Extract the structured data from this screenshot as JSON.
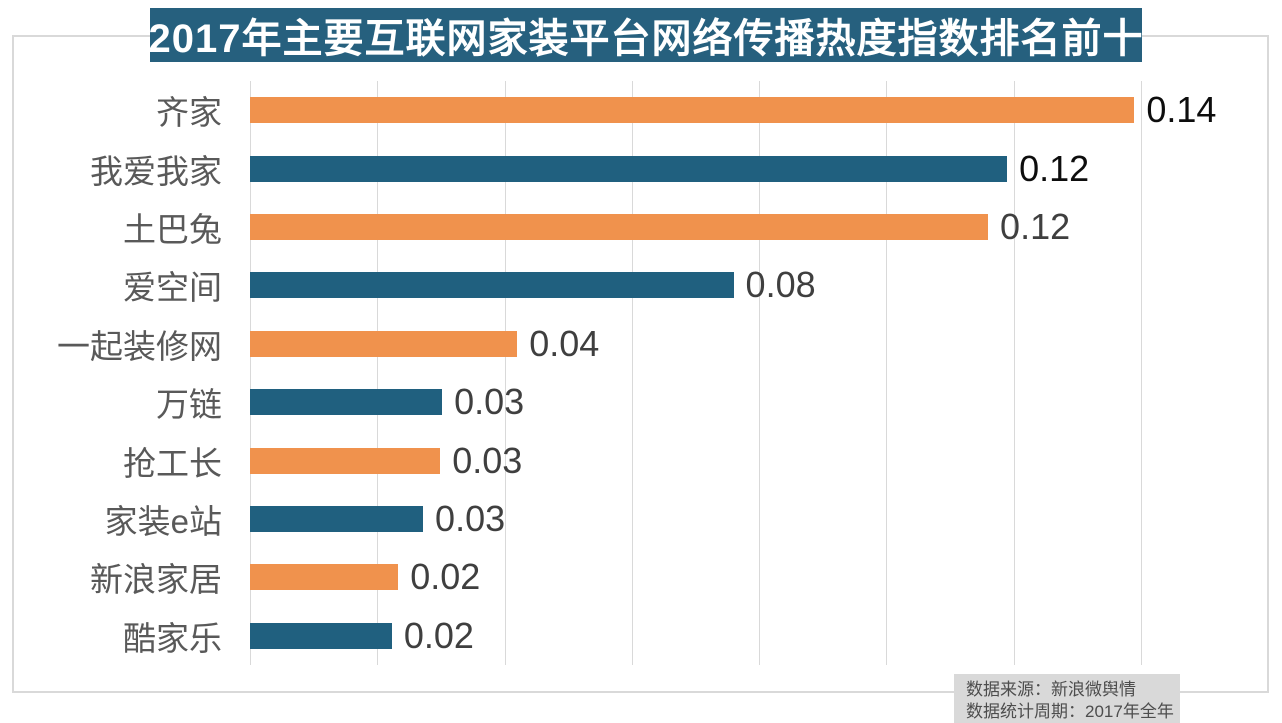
{
  "title": "2017年主要互联网家装平台网络传播热度指数排名前十",
  "colors": {
    "title_bg": "#26607e",
    "title_text": "#ffffff",
    "bar_orange": "#f0924d",
    "bar_blue": "#20607f",
    "gridline": "#d9d9d9",
    "frame_border": "#d9d9d9",
    "category_label": "#595959",
    "value_label_default": "#3f3f3f",
    "value_label_emphasis": "#0d0d0d",
    "source_bg": "#d9d9d9",
    "source_text": "#4d4d4d"
  },
  "chart_data": {
    "type": "bar",
    "orientation": "horizontal",
    "title": "2017年主要互联网家装平台网络传播热度指数排名前十",
    "categories": [
      "齐家",
      "我爱我家",
      "土巴兔",
      "爱空间",
      "一起装修网",
      "万链",
      "抢工长",
      "家装e站",
      "新浪家居",
      "酷家乐"
    ],
    "values": [
      0.14,
      0.12,
      0.12,
      0.08,
      0.04,
      0.03,
      0.03,
      0.03,
      0.02,
      0.02
    ],
    "value_labels": [
      "0.14",
      "0.12",
      "0.12",
      "0.08",
      "0.04",
      "0.03",
      "0.03",
      "0.03",
      "0.02",
      "0.02"
    ],
    "bar_lengths": [
      0.139,
      0.119,
      0.116,
      0.076,
      0.042,
      0.0302,
      0.0299,
      0.0272,
      0.0233,
      0.0223
    ],
    "bar_colors": [
      "#f0924d",
      "#20607f",
      "#f0924d",
      "#20607f",
      "#f0924d",
      "#20607f",
      "#f0924d",
      "#20607f",
      "#f0924d",
      "#20607f"
    ],
    "value_label_colors": [
      "#0d0d0d",
      "#0d0d0d",
      "#3f3f3f",
      "#3f3f3f",
      "#3f3f3f",
      "#3f3f3f",
      "#3f3f3f",
      "#3f3f3f",
      "#3f3f3f",
      "#3f3f3f"
    ],
    "xlabel": "",
    "ylabel": "",
    "xlim": [
      0,
      0.16
    ],
    "gridline_interval": 0.02,
    "grid": true,
    "legend": false
  },
  "source": {
    "line1": "数据来源：新浪微舆情",
    "line2": "数据统计周期：2017年全年"
  }
}
